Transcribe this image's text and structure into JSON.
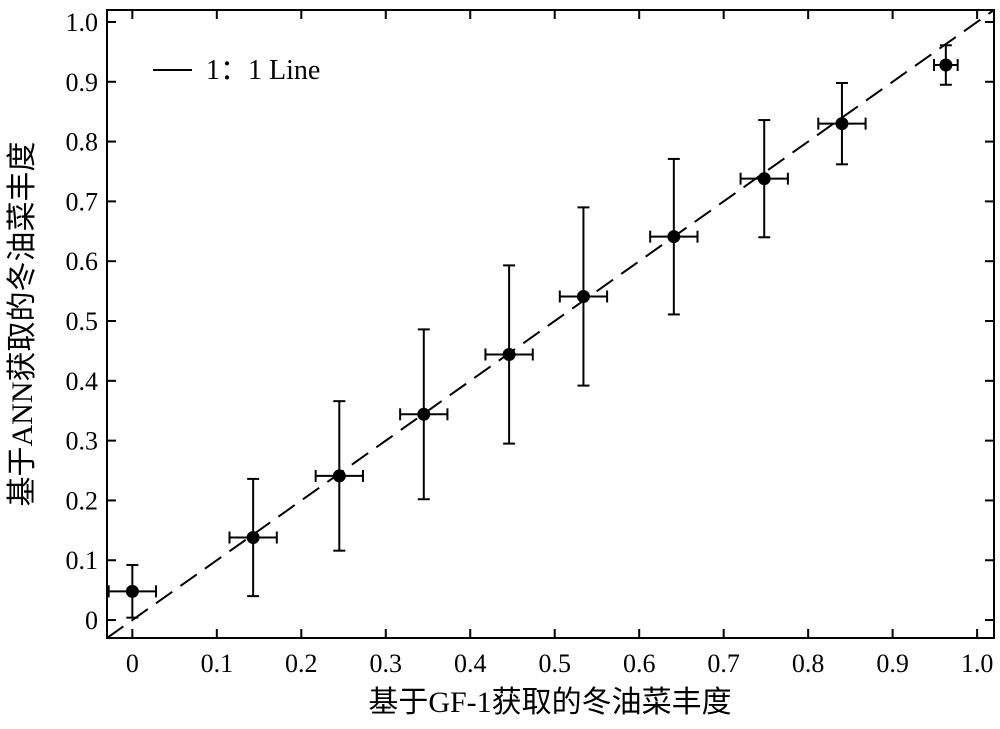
{
  "chart_data": {
    "type": "scatter",
    "title": "",
    "xlabel": "基于GF-1获取的冬油菜丰度",
    "ylabel": "基于ANN获取的冬油菜丰度",
    "xlim": [
      -0.03,
      1.02
    ],
    "ylim": [
      -0.03,
      1.02
    ],
    "x_ticks": [
      "0",
      "0.1",
      "0.2",
      "0.3",
      "0.4",
      "0.5",
      "0.6",
      "0.7",
      "0.8",
      "0.9",
      "1.0"
    ],
    "y_ticks": [
      "0",
      "0.1",
      "0.2",
      "0.3",
      "0.4",
      "0.5",
      "0.6",
      "0.7",
      "0.8",
      "0.9",
      "1.0"
    ],
    "grid": false,
    "legend": {
      "position": "top-left",
      "entries": [
        "1：1 Line"
      ]
    },
    "reference_line": {
      "name": "1：1 Line",
      "style": "dashed",
      "from": [
        -0.03,
        -0.03
      ],
      "to": [
        1.02,
        1.02
      ]
    },
    "points": [
      {
        "x": 0.0,
        "y": 0.048,
        "xerr": 0.028,
        "yerr": 0.044
      },
      {
        "x": 0.143,
        "y": 0.138,
        "xerr": 0.028,
        "yerr": 0.098
      },
      {
        "x": 0.245,
        "y": 0.241,
        "xerr": 0.028,
        "yerr": 0.125
      },
      {
        "x": 0.345,
        "y": 0.344,
        "xerr": 0.028,
        "yerr": 0.142
      },
      {
        "x": 0.446,
        "y": 0.444,
        "xerr": 0.028,
        "yerr": 0.149
      },
      {
        "x": 0.534,
        "y": 0.541,
        "xerr": 0.028,
        "yerr": 0.149
      },
      {
        "x": 0.641,
        "y": 0.641,
        "xerr": 0.028,
        "yerr": 0.13
      },
      {
        "x": 0.748,
        "y": 0.738,
        "xerr": 0.028,
        "yerr": 0.098
      },
      {
        "x": 0.84,
        "y": 0.83,
        "xerr": 0.028,
        "yerr": 0.068
      },
      {
        "x": 0.963,
        "y": 0.928,
        "xerr": 0.014,
        "yerr": 0.033
      }
    ]
  }
}
